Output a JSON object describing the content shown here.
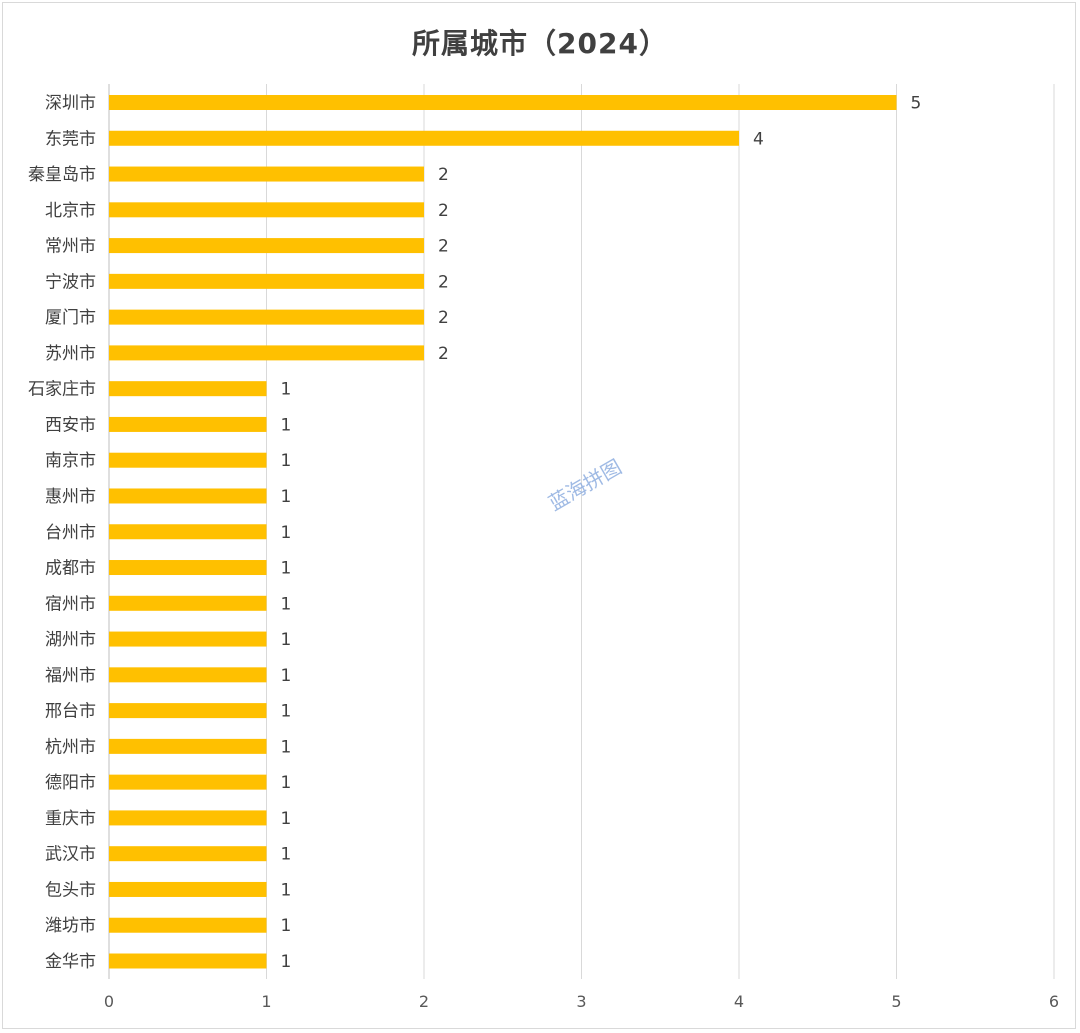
{
  "chart_data": {
    "type": "bar",
    "orientation": "horizontal",
    "title": "所属城市（2024）",
    "xlabel": "",
    "ylabel": "",
    "xlim": [
      0,
      6
    ],
    "x_ticks": [
      0,
      1,
      2,
      3,
      4,
      5,
      6
    ],
    "grid": true,
    "legend": "none",
    "bar_color": "#FFC000",
    "categories": [
      "深圳市",
      "东莞市",
      "秦皇岛市",
      "北京市",
      "常州市",
      "宁波市",
      "厦门市",
      "苏州市",
      "石家庄市",
      "西安市",
      "南京市",
      "惠州市",
      "台州市",
      "成都市",
      "宿州市",
      "湖州市",
      "福州市",
      "邢台市",
      "杭州市",
      "德阳市",
      "重庆市",
      "武汉市",
      "包头市",
      "潍坊市",
      "金华市"
    ],
    "values": [
      5,
      4,
      2,
      2,
      2,
      2,
      2,
      2,
      1,
      1,
      1,
      1,
      1,
      1,
      1,
      1,
      1,
      1,
      1,
      1,
      1,
      1,
      1,
      1,
      1
    ]
  },
  "watermark": "蓝海拼图"
}
